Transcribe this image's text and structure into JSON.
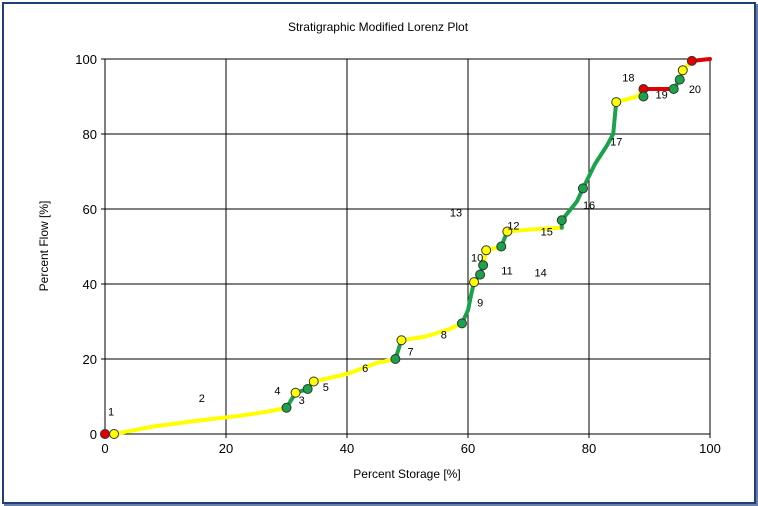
{
  "chart_data": {
    "type": "line",
    "title": "Stratigraphic Modified Lorenz Plot",
    "xlabel": "Percent Storage [%]",
    "ylabel": "Percent Flow [%]",
    "xlim": [
      0,
      100
    ],
    "ylim": [
      0,
      100
    ],
    "xticks": [
      "0",
      "20",
      "40",
      "60",
      "80",
      "100"
    ],
    "yticks": [
      "0",
      "20",
      "40",
      "60",
      "80",
      "100"
    ],
    "grid": true,
    "colors": {
      "yellow": "#ffff00",
      "green": "#1aa34a",
      "red": "#e00000",
      "grid": "#000000"
    },
    "segments": [
      {
        "color": "red",
        "points": [
          [
            0,
            0
          ],
          [
            1.5,
            0
          ]
        ]
      },
      {
        "color": "yellow",
        "points": [
          [
            1.5,
            0
          ],
          [
            8,
            2
          ],
          [
            15,
            3.5
          ],
          [
            22,
            4.8
          ],
          [
            27,
            6
          ],
          [
            30,
            7
          ]
        ]
      },
      {
        "color": "green",
        "points": [
          [
            30,
            7
          ],
          [
            31.5,
            11
          ]
        ]
      },
      {
        "color": "green",
        "points": [
          [
            31.5,
            11
          ],
          [
            33.5,
            12
          ]
        ]
      },
      {
        "color": "yellow",
        "points": [
          [
            33.5,
            12
          ],
          [
            34.5,
            14
          ]
        ]
      },
      {
        "color": "yellow",
        "points": [
          [
            34.5,
            14
          ],
          [
            40,
            16
          ],
          [
            45,
            19
          ],
          [
            48,
            20
          ]
        ]
      },
      {
        "color": "green",
        "points": [
          [
            48,
            20
          ],
          [
            49,
            25
          ]
        ]
      },
      {
        "color": "yellow",
        "points": [
          [
            49,
            25
          ],
          [
            53,
            26
          ],
          [
            57,
            28
          ],
          [
            59,
            29.5
          ]
        ]
      },
      {
        "color": "green",
        "points": [
          [
            59,
            29.5
          ],
          [
            60,
            33
          ],
          [
            60.5,
            37
          ],
          [
            61,
            40.5
          ]
        ]
      },
      {
        "color": "green",
        "points": [
          [
            61,
            40.5
          ],
          [
            62,
            42.5
          ]
        ]
      },
      {
        "color": "green",
        "points": [
          [
            62,
            42.5
          ],
          [
            62.5,
            45
          ]
        ]
      },
      {
        "color": "yellow",
        "points": [
          [
            62.5,
            45
          ],
          [
            63,
            49
          ]
        ]
      },
      {
        "color": "yellow",
        "points": [
          [
            63,
            49
          ],
          [
            65.5,
            50
          ]
        ]
      },
      {
        "color": "green",
        "points": [
          [
            65.5,
            50
          ],
          [
            66.5,
            54
          ]
        ]
      },
      {
        "color": "yellow",
        "points": [
          [
            66.5,
            54
          ],
          [
            70,
            54.5
          ],
          [
            75.5,
            55
          ]
        ]
      },
      {
        "color": "green",
        "points": [
          [
            75.5,
            55
          ],
          [
            75.5,
            57
          ],
          [
            78,
            62
          ],
          [
            79,
            65.5
          ]
        ]
      },
      {
        "color": "green",
        "points": [
          [
            79,
            65.5
          ],
          [
            81,
            72
          ],
          [
            83,
            77
          ],
          [
            84,
            80
          ],
          [
            84.5,
            88.5
          ]
        ]
      },
      {
        "color": "yellow",
        "points": [
          [
            84.5,
            88.5
          ],
          [
            88,
            90
          ],
          [
            89,
            92
          ]
        ]
      },
      {
        "color": "red",
        "points": [
          [
            89,
            92
          ],
          [
            94,
            92
          ]
        ]
      },
      {
        "color": "green",
        "points": [
          [
            94,
            92
          ],
          [
            95,
            94.5
          ]
        ]
      },
      {
        "color": "yellow",
        "points": [
          [
            95,
            94.5
          ],
          [
            95.5,
            97
          ],
          [
            97,
            99.5
          ]
        ]
      },
      {
        "color": "red",
        "points": [
          [
            97,
            99.5
          ],
          [
            100,
            100
          ]
        ]
      }
    ],
    "markers": [
      {
        "x": 0,
        "y": 0,
        "color": "red"
      },
      {
        "x": 1.5,
        "y": 0,
        "color": "yellow"
      },
      {
        "x": 30,
        "y": 7,
        "color": "green"
      },
      {
        "x": 31.5,
        "y": 11,
        "color": "yellow"
      },
      {
        "x": 33.5,
        "y": 12,
        "color": "green"
      },
      {
        "x": 34.5,
        "y": 14,
        "color": "yellow"
      },
      {
        "x": 48,
        "y": 20,
        "color": "green"
      },
      {
        "x": 49,
        "y": 25,
        "color": "yellow"
      },
      {
        "x": 59,
        "y": 29.5,
        "color": "green"
      },
      {
        "x": 61,
        "y": 40.5,
        "color": "yellow"
      },
      {
        "x": 62,
        "y": 42.5,
        "color": "green"
      },
      {
        "x": 62.5,
        "y": 45,
        "color": "green"
      },
      {
        "x": 63,
        "y": 49,
        "color": "yellow"
      },
      {
        "x": 65.5,
        "y": 50,
        "color": "green"
      },
      {
        "x": 66.5,
        "y": 54,
        "color": "yellow"
      },
      {
        "x": 75.5,
        "y": 57,
        "color": "green"
      },
      {
        "x": 79,
        "y": 65.5,
        "color": "green"
      },
      {
        "x": 84.5,
        "y": 88.5,
        "color": "yellow"
      },
      {
        "x": 89,
        "y": 92,
        "color": "red"
      },
      {
        "x": 89,
        "y": 90,
        "color": "green"
      },
      {
        "x": 94,
        "y": 92,
        "color": "green"
      },
      {
        "x": 95,
        "y": 94.5,
        "color": "green"
      },
      {
        "x": 95.5,
        "y": 97,
        "color": "yellow"
      },
      {
        "x": 97,
        "y": 99.5,
        "color": "red"
      }
    ],
    "annotations": [
      {
        "text": "1",
        "x": 0.5,
        "y": 5
      },
      {
        "text": "2",
        "x": 15.5,
        "y": 8.5
      },
      {
        "text": "3",
        "x": 32,
        "y": 8
      },
      {
        "text": "4",
        "x": 28,
        "y": 10.5
      },
      {
        "text": "5",
        "x": 36,
        "y": 11.5
      },
      {
        "text": "6",
        "x": 42.5,
        "y": 16.5
      },
      {
        "text": "7",
        "x": 50,
        "y": 21
      },
      {
        "text": "8",
        "x": 55.5,
        "y": 25.5
      },
      {
        "text": "9",
        "x": 61.5,
        "y": 34
      },
      {
        "text": "10",
        "x": 60.5,
        "y": 46
      },
      {
        "text": "11",
        "x": 65.5,
        "y": 42.5
      },
      {
        "text": "12",
        "x": 66.5,
        "y": 54.5
      },
      {
        "text": "13",
        "x": 57,
        "y": 58
      },
      {
        "text": "14",
        "x": 71,
        "y": 42
      },
      {
        "text": "15",
        "x": 72,
        "y": 53
      },
      {
        "text": "16",
        "x": 79,
        "y": 60
      },
      {
        "text": "17",
        "x": 83.5,
        "y": 77
      },
      {
        "text": "18",
        "x": 85.5,
        "y": 94
      },
      {
        "text": "19",
        "x": 91,
        "y": 89.5
      },
      {
        "text": "20",
        "x": 96.5,
        "y": 91
      }
    ]
  }
}
